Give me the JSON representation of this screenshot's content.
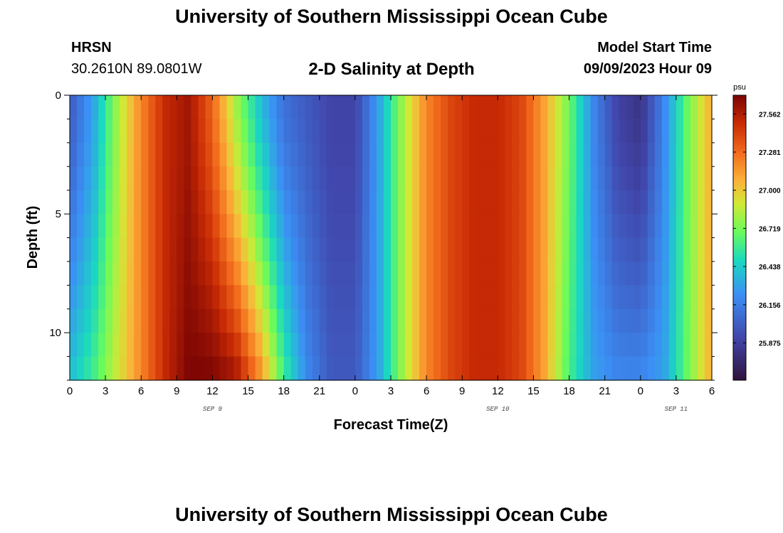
{
  "header": {
    "title_top": "University of Southern Mississippi Ocean Cube",
    "title_bottom": "University of Southern Mississippi Ocean Cube",
    "station_code": "HRSN",
    "station_coords": "30.2610N  89.0801W",
    "plot_title": "2-D Salinity at Depth",
    "start_label": "Model Start Time",
    "start_value": "09/09/2023 Hour 09"
  },
  "chart_data": {
    "type": "heatmap",
    "title": "2-D Salinity at Depth",
    "xlabel": "Forecast Time(Z)",
    "ylabel": "Depth (ft)",
    "x_hours": [
      0,
      54
    ],
    "x_tick_labels": [
      "0",
      "3",
      "6",
      "9",
      "12",
      "15",
      "18",
      "21",
      "0",
      "3",
      "6",
      "9",
      "12",
      "15",
      "18",
      "21",
      "0",
      "3",
      "6"
    ],
    "date_labels": [
      {
        "text": "SEP 9",
        "hour": 12
      },
      {
        "text": "SEP 10",
        "hour": 36
      },
      {
        "text": "SEP 11",
        "hour": 51
      }
    ],
    "ylim": [
      0,
      12
    ],
    "y_tick_labels": [
      "0",
      "5",
      "10"
    ],
    "depth_levels_ft": [
      0,
      1,
      2,
      3,
      4,
      5,
      6,
      7,
      8,
      9,
      10,
      11,
      12
    ],
    "colorbar": {
      "unit": "psu",
      "min": 25.6,
      "max": 27.7,
      "tick_labels": [
        "27.562",
        "27.281",
        "27.000",
        "26.719",
        "26.438",
        "26.156",
        "25.875"
      ]
    },
    "surface_profile": {
      "hours": [
        0,
        2,
        4,
        6,
        8,
        10,
        12,
        14,
        16,
        18,
        20,
        22,
        24,
        26,
        28,
        30,
        32,
        34,
        36,
        38,
        40,
        42,
        44,
        46,
        48,
        50,
        52,
        54
      ],
      "salinity": [
        26.0,
        26.3,
        26.8,
        27.2,
        27.5,
        27.6,
        27.3,
        26.8,
        26.4,
        26.1,
        26.0,
        25.9,
        25.9,
        26.3,
        26.8,
        27.2,
        27.4,
        27.5,
        27.5,
        27.4,
        27.1,
        26.7,
        26.2,
        25.9,
        25.8,
        26.2,
        26.7,
        27.1
      ]
    },
    "bottom_profile": {
      "hours": [
        0,
        2,
        4,
        6,
        8,
        10,
        12,
        14,
        16,
        18,
        20,
        22,
        24,
        26,
        28,
        30,
        32,
        34,
        36,
        38,
        40,
        42,
        44,
        46,
        48,
        50,
        52,
        54
      ],
      "salinity": [
        26.4,
        26.6,
        26.9,
        27.2,
        27.5,
        27.7,
        27.7,
        27.6,
        27.2,
        26.6,
        26.2,
        26.0,
        26.0,
        26.3,
        26.8,
        27.2,
        27.4,
        27.5,
        27.5,
        27.4,
        27.1,
        26.6,
        26.3,
        26.2,
        26.2,
        26.3,
        26.7,
        27.1
      ]
    }
  }
}
